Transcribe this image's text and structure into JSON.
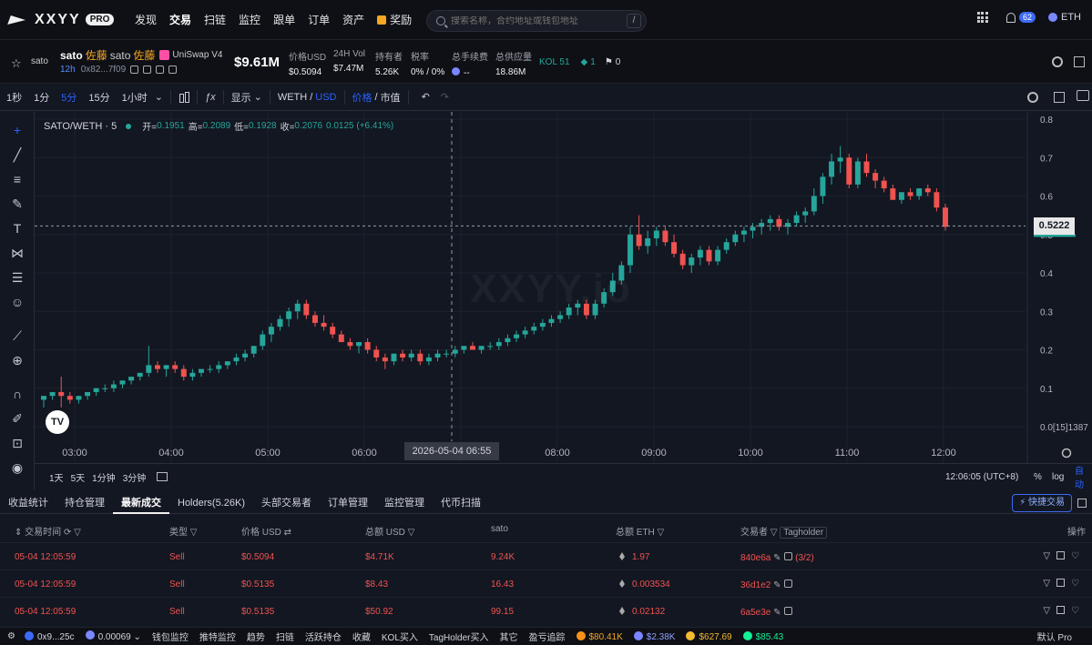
{
  "nav": {
    "brand": "XXYY",
    "brand_badge": "PRO",
    "items": [
      "发现",
      "交易",
      "扫链",
      "监控",
      "跟单",
      "订单",
      "资产"
    ],
    "reward": "奖励",
    "search_placeholder": "搜索名称，合约地址或钱包地址",
    "search_shortcut": "/",
    "notif_count": "62",
    "chain": "ETH"
  },
  "token": {
    "symbol": "sato",
    "name": "sato",
    "jp_name": "佐藤",
    "name2": "sato",
    "jp_name2": "佐藤",
    "dex": "UniSwap V4",
    "age": "12h",
    "address": "0x82...7f09",
    "market_cap": "$9.61M",
    "stats": [
      {
        "label": "价格USD",
        "value": "$0.5094"
      },
      {
        "label": "24H Vol",
        "value": "$7.47M"
      },
      {
        "label": "持有者",
        "value": "5.26K"
      },
      {
        "label": "税率",
        "value": "0% / 0%"
      },
      {
        "label": "总手续费",
        "value": "--"
      },
      {
        "label": "总供应量",
        "value": "18.86M"
      }
    ],
    "kol": "KOL 51",
    "tag_count": "1",
    "flag_count": "0"
  },
  "toolbar": {
    "timeframes": [
      "1秒",
      "1分",
      "5分",
      "15分",
      "1小时"
    ],
    "active_tf": "5分",
    "display": "显示",
    "quote_a": "WETH",
    "quote_b": "USD",
    "mode_a": "价格",
    "mode_b": "市值"
  },
  "legend": {
    "pair": "SATO/WETH · 5",
    "open_label": "开=",
    "open": "0.1951",
    "high_label": "高=",
    "high": "0.2089",
    "low_label": "低=",
    "low": "0.1928",
    "close_label": "收=",
    "close": "0.2076",
    "change": "0.0125 (+6.41%)"
  },
  "watermark": "XXYY.io",
  "chart_data": {
    "type": "candlestick",
    "title": "SATO/WETH · 5",
    "y_ticks": [
      "0.8",
      "0.7",
      "0.6",
      "0.5",
      "0.4",
      "0.3",
      "0.2",
      "0.1",
      "0.0"
    ],
    "ylim": [
      0,
      0.8
    ],
    "x_ticks": [
      "03:00",
      "04:00",
      "05:00",
      "06:00",
      "07:00",
      "08:00",
      "09:00",
      "10:00",
      "11:00",
      "12:00"
    ],
    "last_price": "0.5222",
    "crosshair_date": "2026-05-04 06:55",
    "y_axis_footer": "0.0[15]1387",
    "colors": {
      "up": "#26a69a",
      "down": "#ef5350"
    },
    "candles": [
      [
        0.07,
        0.08,
        0.05,
        0.08
      ],
      [
        0.08,
        0.09,
        0.07,
        0.09
      ],
      [
        0.09,
        0.13,
        0.05,
        0.08
      ],
      [
        0.08,
        0.09,
        0.06,
        0.07
      ],
      [
        0.07,
        0.08,
        0.06,
        0.08
      ],
      [
        0.08,
        0.09,
        0.07,
        0.09
      ],
      [
        0.09,
        0.1,
        0.08,
        0.1
      ],
      [
        0.1,
        0.11,
        0.09,
        0.1
      ],
      [
        0.1,
        0.12,
        0.09,
        0.11
      ],
      [
        0.11,
        0.12,
        0.1,
        0.12
      ],
      [
        0.12,
        0.13,
        0.11,
        0.13
      ],
      [
        0.13,
        0.14,
        0.12,
        0.14
      ],
      [
        0.14,
        0.21,
        0.13,
        0.16
      ],
      [
        0.16,
        0.17,
        0.14,
        0.15
      ],
      [
        0.15,
        0.16,
        0.13,
        0.16
      ],
      [
        0.16,
        0.17,
        0.14,
        0.15
      ],
      [
        0.15,
        0.16,
        0.12,
        0.13
      ],
      [
        0.13,
        0.15,
        0.12,
        0.14
      ],
      [
        0.14,
        0.15,
        0.13,
        0.15
      ],
      [
        0.15,
        0.16,
        0.14,
        0.15
      ],
      [
        0.15,
        0.17,
        0.14,
        0.16
      ],
      [
        0.16,
        0.17,
        0.15,
        0.17
      ],
      [
        0.17,
        0.19,
        0.16,
        0.18
      ],
      [
        0.18,
        0.2,
        0.17,
        0.19
      ],
      [
        0.19,
        0.21,
        0.18,
        0.21
      ],
      [
        0.21,
        0.25,
        0.2,
        0.24
      ],
      [
        0.24,
        0.27,
        0.22,
        0.26
      ],
      [
        0.26,
        0.29,
        0.25,
        0.28
      ],
      [
        0.28,
        0.31,
        0.26,
        0.3
      ],
      [
        0.3,
        0.33,
        0.28,
        0.32
      ],
      [
        0.32,
        0.33,
        0.28,
        0.29
      ],
      [
        0.29,
        0.3,
        0.26,
        0.27
      ],
      [
        0.27,
        0.29,
        0.25,
        0.26
      ],
      [
        0.26,
        0.27,
        0.23,
        0.24
      ],
      [
        0.24,
        0.25,
        0.22,
        0.22
      ],
      [
        0.22,
        0.23,
        0.2,
        0.21
      ],
      [
        0.21,
        0.22,
        0.19,
        0.22
      ],
      [
        0.22,
        0.23,
        0.19,
        0.2
      ],
      [
        0.2,
        0.21,
        0.17,
        0.18
      ],
      [
        0.18,
        0.19,
        0.15,
        0.17
      ],
      [
        0.17,
        0.19,
        0.16,
        0.19
      ],
      [
        0.19,
        0.2,
        0.17,
        0.18
      ],
      [
        0.18,
        0.2,
        0.17,
        0.19
      ],
      [
        0.19,
        0.2,
        0.16,
        0.17
      ],
      [
        0.17,
        0.19,
        0.16,
        0.18
      ],
      [
        0.18,
        0.2,
        0.17,
        0.19
      ],
      [
        0.19,
        0.2,
        0.18,
        0.19
      ],
      [
        0.19,
        0.21,
        0.18,
        0.2
      ],
      [
        0.2,
        0.21,
        0.19,
        0.21
      ],
      [
        0.21,
        0.22,
        0.2,
        0.2
      ],
      [
        0.2,
        0.21,
        0.19,
        0.21
      ],
      [
        0.21,
        0.22,
        0.2,
        0.21
      ],
      [
        0.21,
        0.23,
        0.2,
        0.22
      ],
      [
        0.22,
        0.24,
        0.21,
        0.23
      ],
      [
        0.23,
        0.25,
        0.22,
        0.24
      ],
      [
        0.24,
        0.26,
        0.23,
        0.25
      ],
      [
        0.25,
        0.27,
        0.24,
        0.26
      ],
      [
        0.26,
        0.28,
        0.25,
        0.27
      ],
      [
        0.27,
        0.29,
        0.26,
        0.28
      ],
      [
        0.28,
        0.3,
        0.27,
        0.29
      ],
      [
        0.29,
        0.32,
        0.28,
        0.31
      ],
      [
        0.31,
        0.33,
        0.29,
        0.32
      ],
      [
        0.32,
        0.33,
        0.28,
        0.29
      ],
      [
        0.29,
        0.33,
        0.28,
        0.32
      ],
      [
        0.32,
        0.36,
        0.31,
        0.35
      ],
      [
        0.35,
        0.4,
        0.34,
        0.38
      ],
      [
        0.38,
        0.43,
        0.37,
        0.42
      ],
      [
        0.42,
        0.52,
        0.4,
        0.5
      ],
      [
        0.5,
        0.55,
        0.46,
        0.47
      ],
      [
        0.47,
        0.51,
        0.45,
        0.49
      ],
      [
        0.49,
        0.52,
        0.47,
        0.51
      ],
      [
        0.51,
        0.52,
        0.47,
        0.48
      ],
      [
        0.48,
        0.5,
        0.44,
        0.45
      ],
      [
        0.45,
        0.46,
        0.41,
        0.42
      ],
      [
        0.42,
        0.45,
        0.4,
        0.44
      ],
      [
        0.44,
        0.47,
        0.42,
        0.46
      ],
      [
        0.46,
        0.47,
        0.42,
        0.43
      ],
      [
        0.43,
        0.47,
        0.42,
        0.46
      ],
      [
        0.46,
        0.49,
        0.45,
        0.48
      ],
      [
        0.48,
        0.51,
        0.47,
        0.5
      ],
      [
        0.5,
        0.52,
        0.48,
        0.51
      ],
      [
        0.51,
        0.53,
        0.49,
        0.52
      ],
      [
        0.52,
        0.54,
        0.5,
        0.53
      ],
      [
        0.53,
        0.55,
        0.51,
        0.54
      ],
      [
        0.54,
        0.55,
        0.51,
        0.52
      ],
      [
        0.52,
        0.54,
        0.5,
        0.53
      ],
      [
        0.53,
        0.56,
        0.52,
        0.55
      ],
      [
        0.55,
        0.57,
        0.53,
        0.56
      ],
      [
        0.56,
        0.62,
        0.55,
        0.6
      ],
      [
        0.6,
        0.66,
        0.58,
        0.65
      ],
      [
        0.65,
        0.71,
        0.63,
        0.69
      ],
      [
        0.69,
        0.73,
        0.66,
        0.7
      ],
      [
        0.7,
        0.71,
        0.62,
        0.63
      ],
      [
        0.63,
        0.7,
        0.62,
        0.69
      ],
      [
        0.69,
        0.71,
        0.65,
        0.66
      ],
      [
        0.66,
        0.67,
        0.62,
        0.64
      ],
      [
        0.64,
        0.65,
        0.61,
        0.62
      ],
      [
        0.62,
        0.63,
        0.59,
        0.59
      ],
      [
        0.59,
        0.61,
        0.58,
        0.61
      ],
      [
        0.61,
        0.62,
        0.59,
        0.6
      ],
      [
        0.6,
        0.62,
        0.59,
        0.62
      ],
      [
        0.62,
        0.63,
        0.6,
        0.61
      ],
      [
        0.61,
        0.62,
        0.56,
        0.57
      ],
      [
        0.57,
        0.58,
        0.51,
        0.52
      ]
    ]
  },
  "bottom_axis": {
    "ranges": [
      "1天",
      "5天",
      "1分钟",
      "3分钟"
    ],
    "time": "12:06:05 (UTC+8)",
    "pct": "%",
    "log": "log",
    "auto": "自动"
  },
  "tabs": [
    "收益统计",
    "持仓管理",
    "最新成交",
    "Holders(5.26K)",
    "头部交易者",
    "订单管理",
    "监控管理",
    "代币扫描"
  ],
  "active_tab": "最新成交",
  "quick_trade": "快捷交易",
  "table": {
    "headers": [
      "交易时间",
      "类型",
      "价格 USD",
      "总额 USD",
      "sato",
      "总额 ETH",
      "交易者",
      "Tagholder",
      "操作"
    ],
    "rows": [
      {
        "time": "05-04 12:05:59",
        "type": "Sell",
        "price": "$0.5094",
        "total": "$4.71K",
        "amount": "9.24K",
        "eth": "1.97",
        "trader": "840e6a",
        "extra": "(3/2)"
      },
      {
        "time": "05-04 12:05:59",
        "type": "Sell",
        "price": "$0.5135",
        "total": "$8.43",
        "amount": "16.43",
        "eth": "0.003534",
        "trader": "36d1e2",
        "extra": ""
      },
      {
        "time": "05-04 12:05:59",
        "type": "Sell",
        "price": "$0.5135",
        "total": "$50.92",
        "amount": "99.15",
        "eth": "0.02132",
        "trader": "6a5e3e",
        "extra": ""
      }
    ]
  },
  "status": {
    "wallet": "0x9...25c",
    "balance": "0.00069",
    "items": [
      "钱包监控",
      "推特监控",
      "趋势",
      "扫链",
      "活跃持仓",
      "收藏",
      "KOL买入",
      "TagHolder买入",
      "其它",
      "盈亏追踪"
    ],
    "prices": [
      "$80.41K",
      "$2.38K",
      "$627.69",
      "$85.43"
    ],
    "mode": "默认 Pro"
  }
}
